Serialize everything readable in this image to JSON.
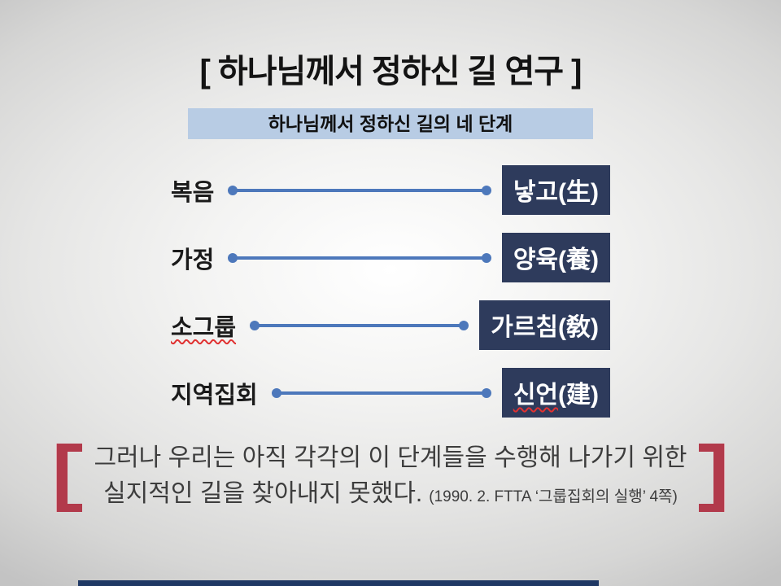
{
  "slide": {
    "title": "[ 하나님께서 정하신 길 연구 ]",
    "banner": "하나님께서 정하신 길의 네 단계",
    "rows": [
      {
        "label": "복음",
        "box": "낳고(生)"
      },
      {
        "label": "가정",
        "box": "양육(養)"
      },
      {
        "label": "소그룹",
        "box": "가르침(敎)"
      },
      {
        "label": "지역집회",
        "box_main": "신언",
        "box_tail": "(建)"
      }
    ],
    "quote": {
      "line1": "그러나 우리는 아직 각각의 이 단계들을 수행해 나가기 위한",
      "line2": "실지적인 길을 찾아내지 못했다.",
      "citation": "(1990. 2. FTTA ‘그룹집회의 실행’ 4쪽)"
    },
    "colors": {
      "banner_blue": "#b8cce4",
      "box_navy": "#2e3b5c",
      "box_text_white": "#ffffff",
      "connector_blue": "#4d78bb",
      "bracket_red": "#b23a4b",
      "bottom_bar_navy": "#1f3864",
      "spellcheck_red": "#e03131",
      "title_black": "#131313",
      "quote_gray": "#3d3d3d",
      "background_gray": "#e6e6e5"
    }
  }
}
